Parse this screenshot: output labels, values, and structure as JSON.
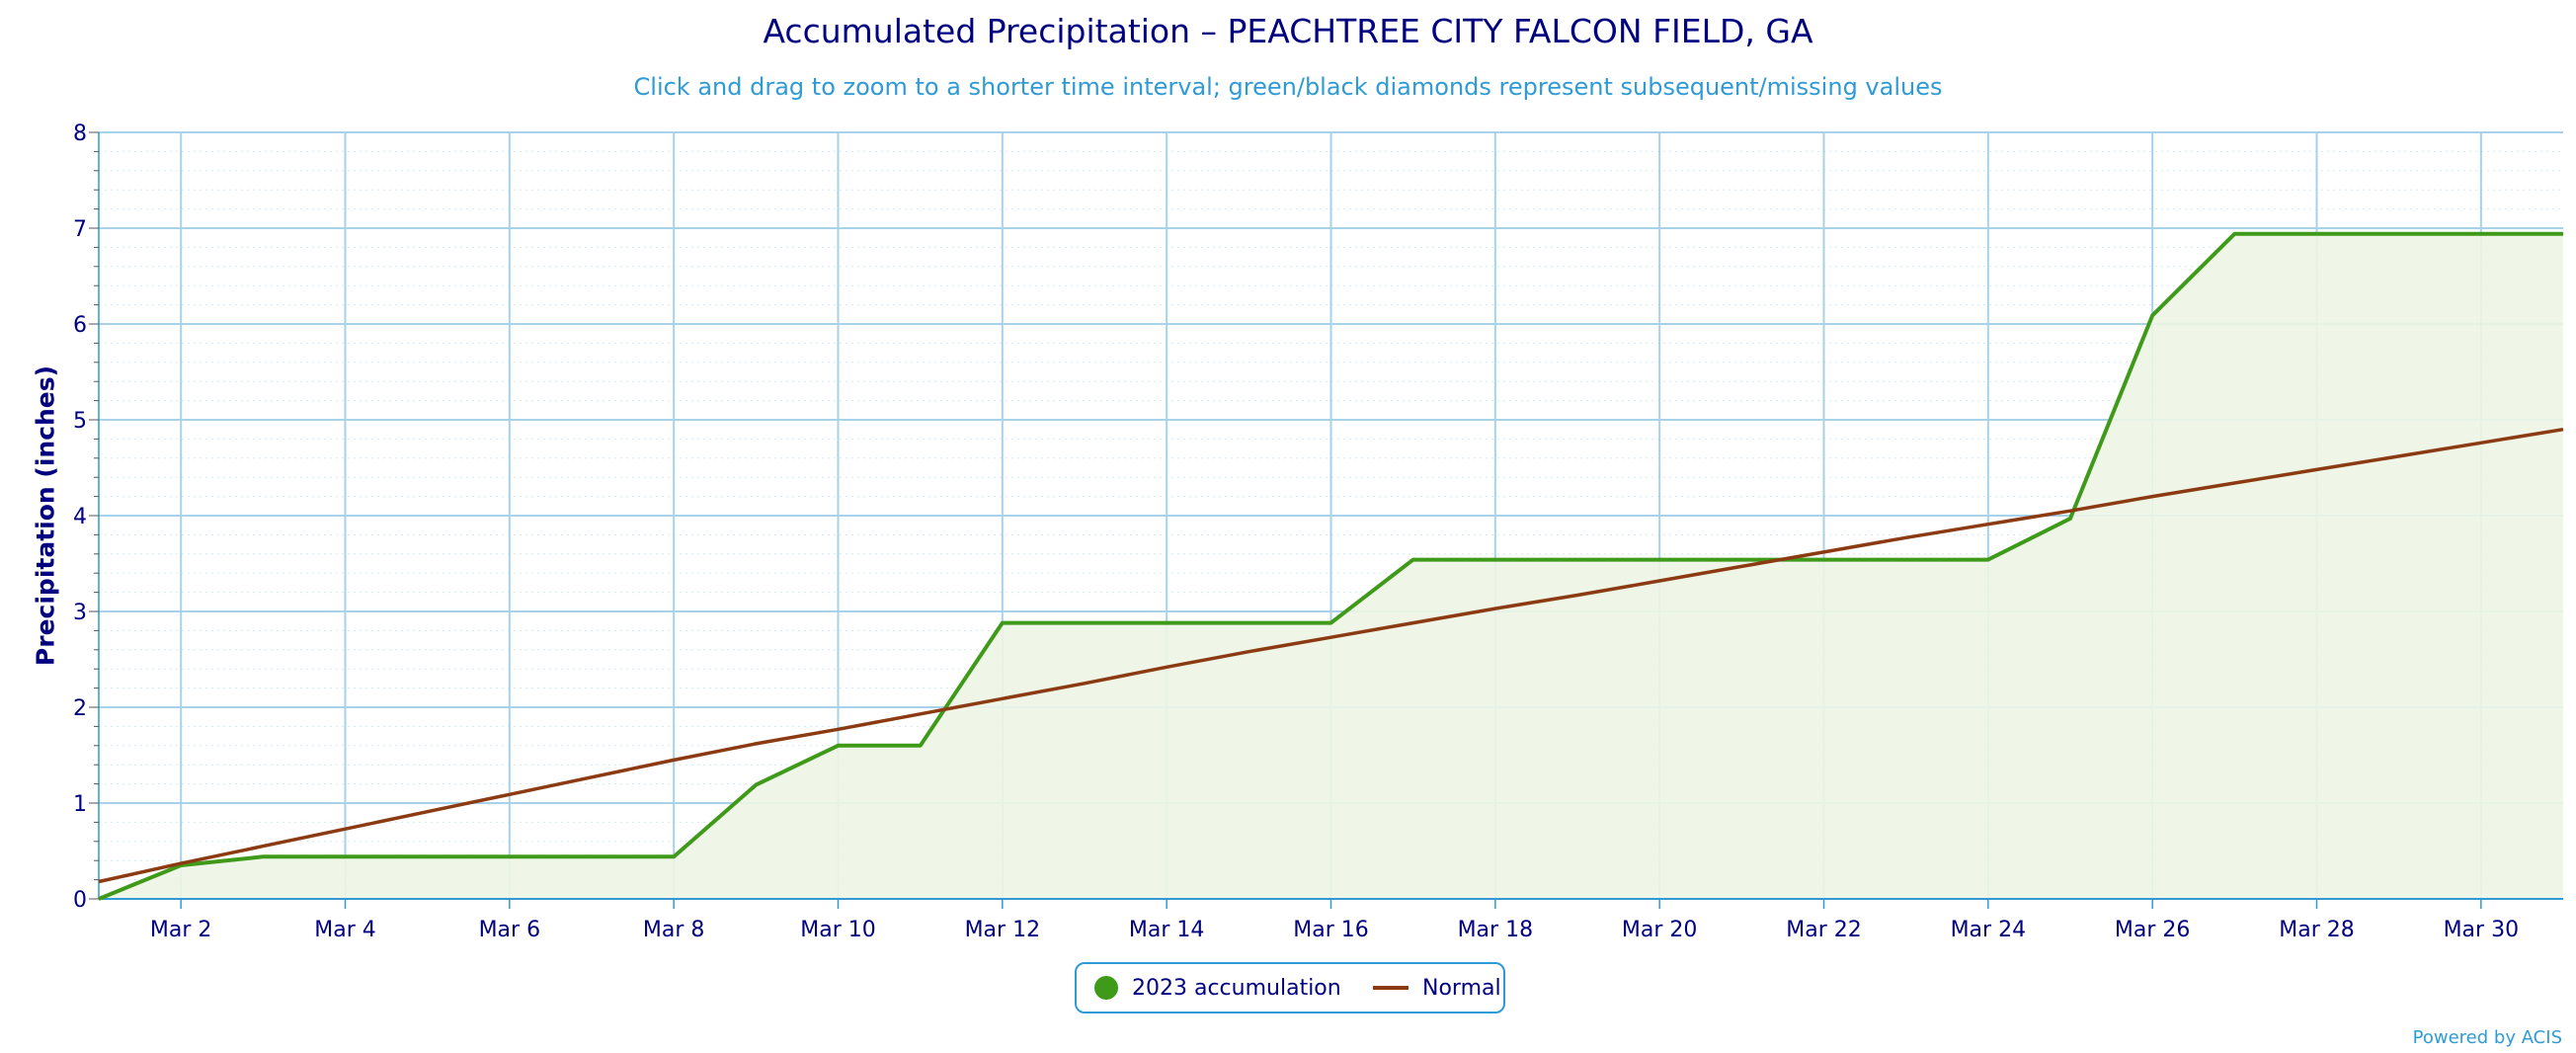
{
  "colors": {
    "title": "#000080",
    "subtitle": "#2f9bd6",
    "accumulation": "#3f9a1a",
    "accumulation_fill": "#edf5e6",
    "normal": "#8b3a12",
    "grid": "#a8d2ea",
    "axis": "#2f9bd6"
  },
  "chart_data": {
    "type": "line",
    "title": "Accumulated Precipitation – PEACHTREE CITY FALCON FIELD, GA",
    "subtitle": "Click and drag to zoom to a shorter time interval; green/black diamonds represent subsequent/missing values",
    "ylabel": "Precipitation (inches)",
    "xlabel": "",
    "ylim": [
      0,
      8
    ],
    "xlim": [
      1,
      31
    ],
    "yticks": [
      "0",
      "1",
      "2",
      "3",
      "4",
      "5",
      "6",
      "7",
      "8"
    ],
    "xticks": [
      {
        "day": 2,
        "label": "Mar 2"
      },
      {
        "day": 4,
        "label": "Mar 4"
      },
      {
        "day": 6,
        "label": "Mar 6"
      },
      {
        "day": 8,
        "label": "Mar 8"
      },
      {
        "day": 10,
        "label": "Mar 10"
      },
      {
        "day": 12,
        "label": "Mar 12"
      },
      {
        "day": 14,
        "label": "Mar 14"
      },
      {
        "day": 16,
        "label": "Mar 16"
      },
      {
        "day": 18,
        "label": "Mar 18"
      },
      {
        "day": 20,
        "label": "Mar 20"
      },
      {
        "day": 22,
        "label": "Mar 22"
      },
      {
        "day": 24,
        "label": "Mar 24"
      },
      {
        "day": 26,
        "label": "Mar 26"
      },
      {
        "day": 28,
        "label": "Mar 28"
      },
      {
        "day": 30,
        "label": "Mar 30"
      }
    ],
    "grid": true,
    "legend_position": "bottom-center",
    "series": [
      {
        "name": "2023 accumulation",
        "style": "line-area",
        "x": [
          1,
          2,
          3,
          4,
          5,
          6,
          7,
          8,
          9,
          10,
          11,
          12,
          13,
          14,
          15,
          16,
          17,
          18,
          19,
          20,
          21,
          22,
          23,
          24,
          25,
          26,
          27,
          28,
          29,
          30,
          31
        ],
        "values": [
          0.0,
          0.35,
          0.44,
          0.44,
          0.44,
          0.44,
          0.44,
          0.44,
          1.19,
          1.6,
          1.6,
          2.88,
          2.88,
          2.88,
          2.88,
          2.88,
          3.54,
          3.54,
          3.54,
          3.54,
          3.54,
          3.54,
          3.54,
          3.54,
          3.97,
          6.09,
          6.94,
          6.94,
          6.94,
          6.94,
          6.94
        ]
      },
      {
        "name": "Normal",
        "style": "line",
        "x": [
          1,
          2,
          3,
          4,
          5,
          6,
          7,
          8,
          9,
          10,
          11,
          12,
          13,
          14,
          15,
          16,
          17,
          18,
          19,
          20,
          21,
          22,
          23,
          24,
          25,
          26,
          27,
          28,
          29,
          30,
          31
        ],
        "values": [
          0.18,
          0.37,
          0.55,
          0.73,
          0.91,
          1.09,
          1.27,
          1.45,
          1.62,
          1.77,
          1.93,
          2.09,
          2.25,
          2.42,
          2.58,
          2.73,
          2.88,
          3.03,
          3.17,
          3.32,
          3.47,
          3.62,
          3.77,
          3.91,
          4.05,
          4.2,
          4.34,
          4.48,
          4.62,
          4.76,
          4.9
        ]
      }
    ]
  },
  "legend": {
    "accumulation_label": "2023 accumulation",
    "normal_label": "Normal"
  },
  "credit": "Powered by ACIS"
}
